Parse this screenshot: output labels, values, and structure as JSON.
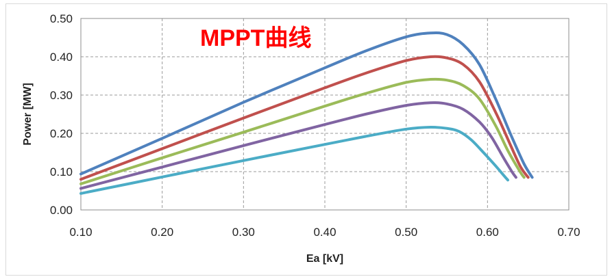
{
  "chart_data": {
    "type": "line",
    "title": "MPPT曲线",
    "title_color": "#ff0000",
    "xlabel": "Ea [kV]",
    "ylabel": "Power [MW]",
    "xlim": [
      0.1,
      0.7
    ],
    "ylim": [
      0.0,
      0.5
    ],
    "x_ticks": [
      0.1,
      0.2,
      0.3,
      0.4,
      0.5,
      0.6,
      0.7
    ],
    "x_tick_labels": [
      "0.10",
      "0.20",
      "0.30",
      "0.40",
      "0.50",
      "0.60",
      "0.70"
    ],
    "y_ticks": [
      0.0,
      0.1,
      0.2,
      0.3,
      0.4,
      0.5
    ],
    "y_tick_labels": [
      "0.00",
      "0.10",
      "0.20",
      "0.30",
      "0.40",
      "0.50"
    ],
    "grid": true,
    "legend": "none",
    "series": [
      {
        "name": "series-blue",
        "color": "#4f81bd",
        "x": [
          0.1,
          0.2,
          0.3,
          0.4,
          0.45,
          0.5,
          0.53,
          0.55,
          0.57,
          0.59,
          0.61,
          0.63,
          0.645,
          0.655
        ],
        "y": [
          0.094,
          0.187,
          0.281,
          0.371,
          0.415,
          0.452,
          0.462,
          0.458,
          0.432,
          0.38,
          0.29,
          0.19,
          0.12,
          0.085
        ]
      },
      {
        "name": "series-red",
        "color": "#c0504d",
        "x": [
          0.1,
          0.2,
          0.3,
          0.4,
          0.45,
          0.5,
          0.53,
          0.55,
          0.57,
          0.59,
          0.61,
          0.625,
          0.64,
          0.65
        ],
        "y": [
          0.08,
          0.16,
          0.24,
          0.319,
          0.357,
          0.39,
          0.4,
          0.397,
          0.38,
          0.335,
          0.255,
          0.185,
          0.115,
          0.085
        ]
      },
      {
        "name": "series-green",
        "color": "#9bbb59",
        "x": [
          0.1,
          0.2,
          0.3,
          0.4,
          0.45,
          0.5,
          0.53,
          0.55,
          0.57,
          0.59,
          0.61,
          0.625,
          0.64,
          0.645
        ],
        "y": [
          0.068,
          0.136,
          0.203,
          0.271,
          0.304,
          0.333,
          0.341,
          0.339,
          0.325,
          0.29,
          0.22,
          0.155,
          0.1,
          0.085
        ]
      },
      {
        "name": "series-purple",
        "color": "#8064a2",
        "x": [
          0.1,
          0.2,
          0.3,
          0.4,
          0.45,
          0.5,
          0.53,
          0.55,
          0.57,
          0.59,
          0.605,
          0.62,
          0.63,
          0.635
        ],
        "y": [
          0.056,
          0.112,
          0.168,
          0.223,
          0.25,
          0.273,
          0.28,
          0.277,
          0.263,
          0.23,
          0.19,
          0.135,
          0.1,
          0.085
        ]
      },
      {
        "name": "series-cyan",
        "color": "#4bacc6",
        "x": [
          0.1,
          0.2,
          0.3,
          0.4,
          0.45,
          0.5,
          0.53,
          0.55,
          0.565,
          0.58,
          0.595,
          0.61,
          0.62,
          0.625
        ],
        "y": [
          0.043,
          0.086,
          0.129,
          0.171,
          0.192,
          0.211,
          0.216,
          0.213,
          0.205,
          0.183,
          0.15,
          0.115,
          0.09,
          0.078
        ]
      }
    ]
  }
}
